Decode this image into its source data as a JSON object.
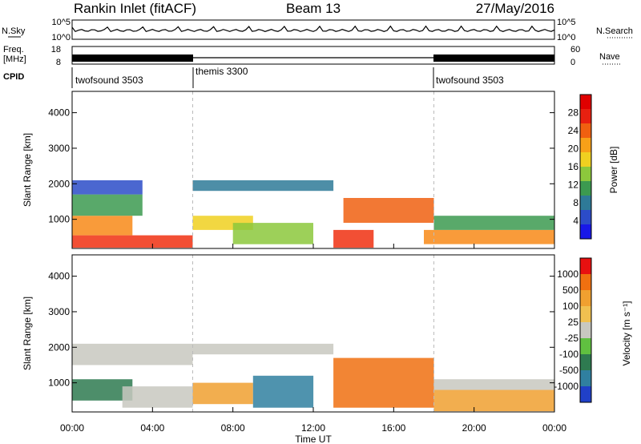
{
  "header": {
    "station": "Rankin Inlet (fitACF)",
    "beam": "Beam 13",
    "date": "27/May/2016"
  },
  "strips": {
    "nsky": {
      "label": "N.Sky",
      "ticks": [
        "10^5",
        "10^0"
      ]
    },
    "nsearch": {
      "label": "N.Search",
      "ticks": [
        "10^5",
        "10^0"
      ]
    },
    "freq": {
      "label": "Freq.",
      "unit": "[MHz]",
      "ticks": [
        "18",
        "8"
      ]
    },
    "nave": {
      "label": "Nave",
      "ticks": [
        "60",
        "0"
      ]
    },
    "cpid": {
      "label": "CPID",
      "segments": [
        {
          "name": "twofsound 3503",
          "start_h": 0,
          "end_h": 6
        },
        {
          "name": "themis 3300",
          "start_h": 6,
          "end_h": 18
        },
        {
          "name": "twofsound 3503",
          "start_h": 18,
          "end_h": 24
        }
      ]
    }
  },
  "chart_data": [
    {
      "type": "heatmap",
      "name": "power",
      "ylabel": "Slant Range [km]",
      "y_ticks": [
        "1000",
        "2000",
        "3000",
        "4000"
      ],
      "y_tick_values": [
        1000,
        2000,
        3000,
        4000
      ],
      "ylim": [
        180,
        4600
      ],
      "colorbar": {
        "label": "Power [dB]",
        "ticks": [
          "4",
          "8",
          "12",
          "16",
          "20",
          "24",
          "28"
        ],
        "colors": [
          "#1818e8",
          "#2c4cc8",
          "#2e7a98",
          "#3c9a50",
          "#8cc83c",
          "#f0d020",
          "#f8a018",
          "#f06010",
          "#e82010",
          "#e00000"
        ]
      },
      "bands": [
        {
          "start_h": 0.0,
          "end_h": 6.0,
          "low_km": 200,
          "high_km": 550,
          "color": "#f03010"
        },
        {
          "start_h": 0.0,
          "end_h": 3.0,
          "low_km": 550,
          "high_km": 1100,
          "color": "#f88a18"
        },
        {
          "start_h": 0.0,
          "end_h": 3.5,
          "low_km": 1100,
          "high_km": 1700,
          "color": "#3c9a50"
        },
        {
          "start_h": 0.0,
          "end_h": 3.5,
          "low_km": 1700,
          "high_km": 2100,
          "color": "#2c4cc8"
        },
        {
          "start_h": 6.0,
          "end_h": 9.0,
          "low_km": 700,
          "high_km": 1100,
          "color": "#f0d020"
        },
        {
          "start_h": 6.0,
          "end_h": 13.0,
          "low_km": 1800,
          "high_km": 2100,
          "color": "#2e7a98"
        },
        {
          "start_h": 8.0,
          "end_h": 12.0,
          "low_km": 300,
          "high_km": 900,
          "color": "#8cc83c"
        },
        {
          "start_h": 13.0,
          "end_h": 15.0,
          "low_km": 200,
          "high_km": 700,
          "color": "#f03010"
        },
        {
          "start_h": 13.5,
          "end_h": 18.0,
          "low_km": 900,
          "high_km": 1600,
          "color": "#f06010"
        },
        {
          "start_h": 17.5,
          "end_h": 24.0,
          "low_km": 300,
          "high_km": 700,
          "color": "#f88a18"
        },
        {
          "start_h": 18.0,
          "end_h": 24.0,
          "low_km": 700,
          "high_km": 1100,
          "color": "#3c9a50"
        }
      ]
    },
    {
      "type": "heatmap",
      "name": "velocity",
      "ylabel": "Slant Range [km]",
      "y_ticks": [
        "1000",
        "2000",
        "3000",
        "4000"
      ],
      "y_tick_values": [
        1000,
        2000,
        3000,
        4000
      ],
      "ylim": [
        180,
        4600
      ],
      "colorbar": {
        "label": "Velocity [m s⁻¹]",
        "ticks": [
          "1000",
          "500",
          "100",
          "25",
          "-25",
          "-100",
          "-500",
          "-1000"
        ],
        "colors": [
          "#2040c8",
          "#3080a0",
          "#2e7a50",
          "#60c040",
          "#c8c8c0",
          "#f0c050",
          "#f0a030",
          "#f07010",
          "#e81010"
        ]
      },
      "bands": [
        {
          "start_h": 0.0,
          "end_h": 6.0,
          "low_km": 1500,
          "high_km": 2100,
          "color": "#c8c8c0"
        },
        {
          "start_h": 0.0,
          "end_h": 3.0,
          "low_km": 500,
          "high_km": 1100,
          "color": "#2e7a50"
        },
        {
          "start_h": 2.5,
          "end_h": 6.0,
          "low_km": 300,
          "high_km": 900,
          "color": "#c8c8c0"
        },
        {
          "start_h": 6.0,
          "end_h": 9.0,
          "low_km": 400,
          "high_km": 1000,
          "color": "#f0a030"
        },
        {
          "start_h": 6.0,
          "end_h": 13.0,
          "low_km": 1800,
          "high_km": 2100,
          "color": "#c8c8c0"
        },
        {
          "start_h": 9.0,
          "end_h": 12.0,
          "low_km": 300,
          "high_km": 1200,
          "color": "#3080a0"
        },
        {
          "start_h": 13.0,
          "end_h": 18.0,
          "low_km": 300,
          "high_km": 1700,
          "color": "#f07010"
        },
        {
          "start_h": 18.0,
          "end_h": 24.0,
          "low_km": 200,
          "high_km": 800,
          "color": "#f0a030"
        },
        {
          "start_h": 18.0,
          "end_h": 24.0,
          "low_km": 800,
          "high_km": 1100,
          "color": "#c8c8c0"
        }
      ]
    }
  ],
  "x_axis": {
    "label": "Time UT",
    "ticks": [
      "00:00",
      "04:00",
      "08:00",
      "12:00",
      "16:00",
      "20:00",
      "00:00"
    ],
    "tick_hours": [
      0,
      4,
      8,
      12,
      16,
      20,
      24
    ],
    "xlim": [
      0,
      24
    ]
  }
}
